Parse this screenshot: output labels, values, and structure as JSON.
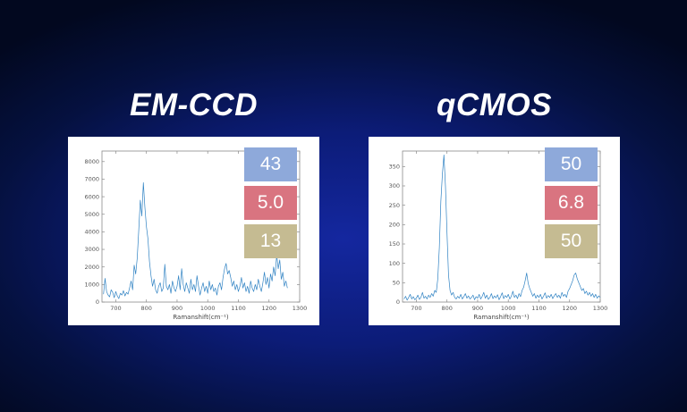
{
  "panels": [
    {
      "title": "EM-CCD",
      "badges": [
        {
          "name": "blue-badge",
          "color": "#8ea9da",
          "value": "43"
        },
        {
          "name": "red-badge",
          "color": "#d97480",
          "value": "5.0"
        },
        {
          "name": "khaki-badge",
          "color": "#c5bb92",
          "value": "13"
        }
      ]
    },
    {
      "title": "qCMOS",
      "badges": [
        {
          "name": "blue-badge",
          "color": "#8ea9da",
          "value": "50"
        },
        {
          "name": "red-badge",
          "color": "#d97480",
          "value": "6.8"
        },
        {
          "name": "khaki-badge",
          "color": "#c5bb92",
          "value": "50"
        }
      ]
    }
  ],
  "chart_data": [
    {
      "type": "line",
      "title": "EM-CCD Raman spectrum",
      "xlabel": "Ramanshift(cm⁻¹)",
      "ylabel": "",
      "xlim": [
        655,
        1300
      ],
      "ylim": [
        0,
        8600
      ],
      "xticks": [
        700,
        800,
        900,
        1000,
        1100,
        1200,
        1300
      ],
      "yticks": [
        0,
        1000,
        2000,
        3000,
        4000,
        5000,
        6000,
        7000,
        8000
      ],
      "grid": false,
      "legend": "none",
      "line_color": "#2f82c3",
      "x_start": 660,
      "x_step": 5,
      "y": [
        450,
        1350,
        600,
        400,
        300,
        700,
        550,
        250,
        600,
        350,
        200,
        500,
        400,
        650,
        350,
        550,
        450,
        800,
        1200,
        700,
        2100,
        1600,
        2500,
        4100,
        5800,
        4900,
        6800,
        5400,
        4300,
        3600,
        2300,
        1500,
        900,
        1300,
        700,
        500,
        900,
        1100,
        600,
        800,
        2150,
        900,
        700,
        1000,
        500,
        1200,
        800,
        600,
        900,
        1500,
        700,
        1900,
        1000,
        600,
        1100,
        800,
        500,
        1300,
        700,
        1000,
        600,
        1500,
        900,
        400,
        800,
        1100,
        600,
        900,
        500,
        1200,
        700,
        1000,
        600,
        800,
        400,
        900,
        1100,
        700,
        1400,
        1900,
        2200,
        1600,
        1800,
        1400,
        900,
        1200,
        700,
        1000,
        600,
        900,
        1400,
        800,
        1100,
        600,
        900,
        500,
        1200,
        800,
        600,
        1000,
        700,
        1300,
        900,
        600,
        1100,
        1700,
        1000,
        1400,
        800,
        1600,
        1200,
        2000,
        1500,
        2700,
        1900,
        2400,
        1300,
        1700,
        900,
        1200,
        800
      ]
    },
    {
      "type": "line",
      "title": "qCMOS Raman spectrum",
      "xlabel": "Ramanshift(cm⁻¹)",
      "ylabel": "",
      "xlim": [
        655,
        1300
      ],
      "ylim": [
        0,
        390
      ],
      "xticks": [
        700,
        800,
        900,
        1000,
        1100,
        1200,
        1300
      ],
      "yticks": [
        0,
        50,
        100,
        150,
        200,
        250,
        300,
        350
      ],
      "grid": false,
      "legend": "none",
      "line_color": "#2f82c3",
      "x_start": 660,
      "x_step": 5,
      "y": [
        8,
        15,
        5,
        12,
        20,
        8,
        14,
        6,
        10,
        18,
        7,
        12,
        25,
        10,
        15,
        8,
        18,
        12,
        22,
        15,
        30,
        25,
        60,
        140,
        260,
        330,
        380,
        300,
        180,
        70,
        30,
        18,
        25,
        12,
        8,
        15,
        10,
        20,
        8,
        14,
        22,
        10,
        16,
        8,
        12,
        18,
        6,
        14,
        10,
        20,
        8,
        15,
        25,
        10,
        18,
        7,
        12,
        22,
        9,
        16,
        11,
        19,
        6,
        14,
        24,
        9,
        17,
        12,
        20,
        8,
        15,
        28,
        12,
        18,
        9,
        22,
        14,
        30,
        38,
        55,
        75,
        48,
        35,
        25,
        15,
        22,
        10,
        18,
        12,
        20,
        8,
        15,
        24,
        10,
        17,
        12,
        20,
        9,
        16,
        22,
        12,
        18,
        10,
        25,
        15,
        20,
        12,
        28,
        35,
        45,
        55,
        70,
        75,
        60,
        50,
        40,
        30,
        35,
        22,
        28,
        18,
        25,
        15,
        22,
        12,
        20,
        10,
        16,
        12
      ]
    }
  ]
}
